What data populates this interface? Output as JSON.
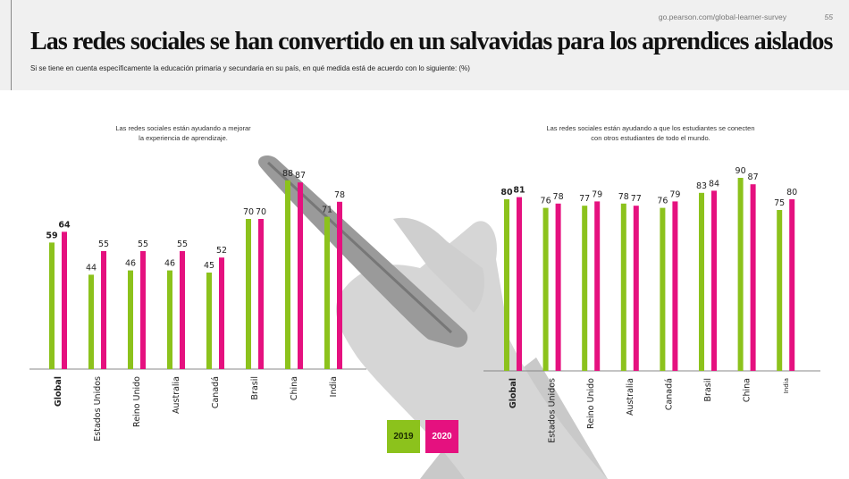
{
  "header": {
    "url": "go.pearson.com/global-learner-survey",
    "page_number": "55",
    "title": "Las redes sociales se han convertido en un salvavidas para los aprendices aislados",
    "subtitle": "Si se tiene en cuenta específicamente la educación primaria y secundaria en su país, en qué medida está de acuerdo con lo siguiente: (%)"
  },
  "legend": {
    "items": [
      {
        "label": "2019",
        "color": "#8cc21c"
      },
      {
        "label": "2020",
        "color": "#e5117f"
      }
    ]
  },
  "chart_data": [
    {
      "type": "bar",
      "title": "Las redes sociales están ayudando a mejorar la experiencia de aprendizaje.",
      "title_lines": [
        "Las redes sociales están ayudando a mejorar",
        "la experiencia de aprendizaje."
      ],
      "categories": [
        "Global",
        "Estados Unidos",
        "Reino Unido",
        "Australia",
        "Canadá",
        "Brasil",
        "China",
        "India"
      ],
      "series": [
        {
          "name": "2019",
          "color": "#8cc21c",
          "values": [
            59,
            44,
            46,
            46,
            45,
            70,
            88,
            71
          ]
        },
        {
          "name": "2020",
          "color": "#e5117f",
          "values": [
            64,
            55,
            55,
            55,
            52,
            70,
            87,
            78
          ]
        }
      ],
      "ylim": [
        0,
        100
      ]
    },
    {
      "type": "bar",
      "title": "Las redes sociales están ayudando a que los estudiantes se conecten con otros estudiantes de todo el mundo.",
      "title_lines": [
        "Las redes sociales están ayudando a que los estudiantes se conecten",
        "con otros estudiantes de todo el mundo."
      ],
      "categories": [
        "Global",
        "Estados Unidos",
        "Reino Unido",
        "Australia",
        "Canadá",
        "Brasil",
        "China",
        "India"
      ],
      "series": [
        {
          "name": "2019",
          "color": "#8cc21c",
          "values": [
            80,
            76,
            77,
            78,
            76,
            83,
            90,
            75
          ]
        },
        {
          "name": "2020",
          "color": "#e5117f",
          "values": [
            81,
            78,
            79,
            77,
            79,
            84,
            87,
            80
          ]
        }
      ],
      "ylim": [
        0,
        100
      ]
    }
  ]
}
